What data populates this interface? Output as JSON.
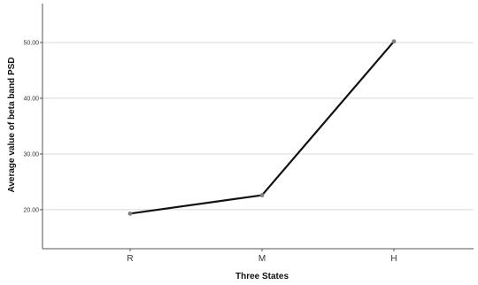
{
  "chart_data": {
    "type": "line",
    "title": "",
    "xlabel": "Three States",
    "ylabel": "Average value of beta band PSD",
    "categories": [
      "R",
      "M",
      "H"
    ],
    "series": [
      {
        "values": [
          19.3,
          22.6,
          50.2
        ]
      }
    ],
    "yticks": [
      20,
      30,
      40,
      50
    ],
    "ytick_labels": [
      "20.00",
      "30.00",
      "40.00",
      "50.00"
    ],
    "ylim": [
      13,
      57
    ],
    "grid": "horizontal",
    "line_color": "#111111",
    "marker_color": "#7f7f7f",
    "grid_color": "#d9d9d9"
  }
}
